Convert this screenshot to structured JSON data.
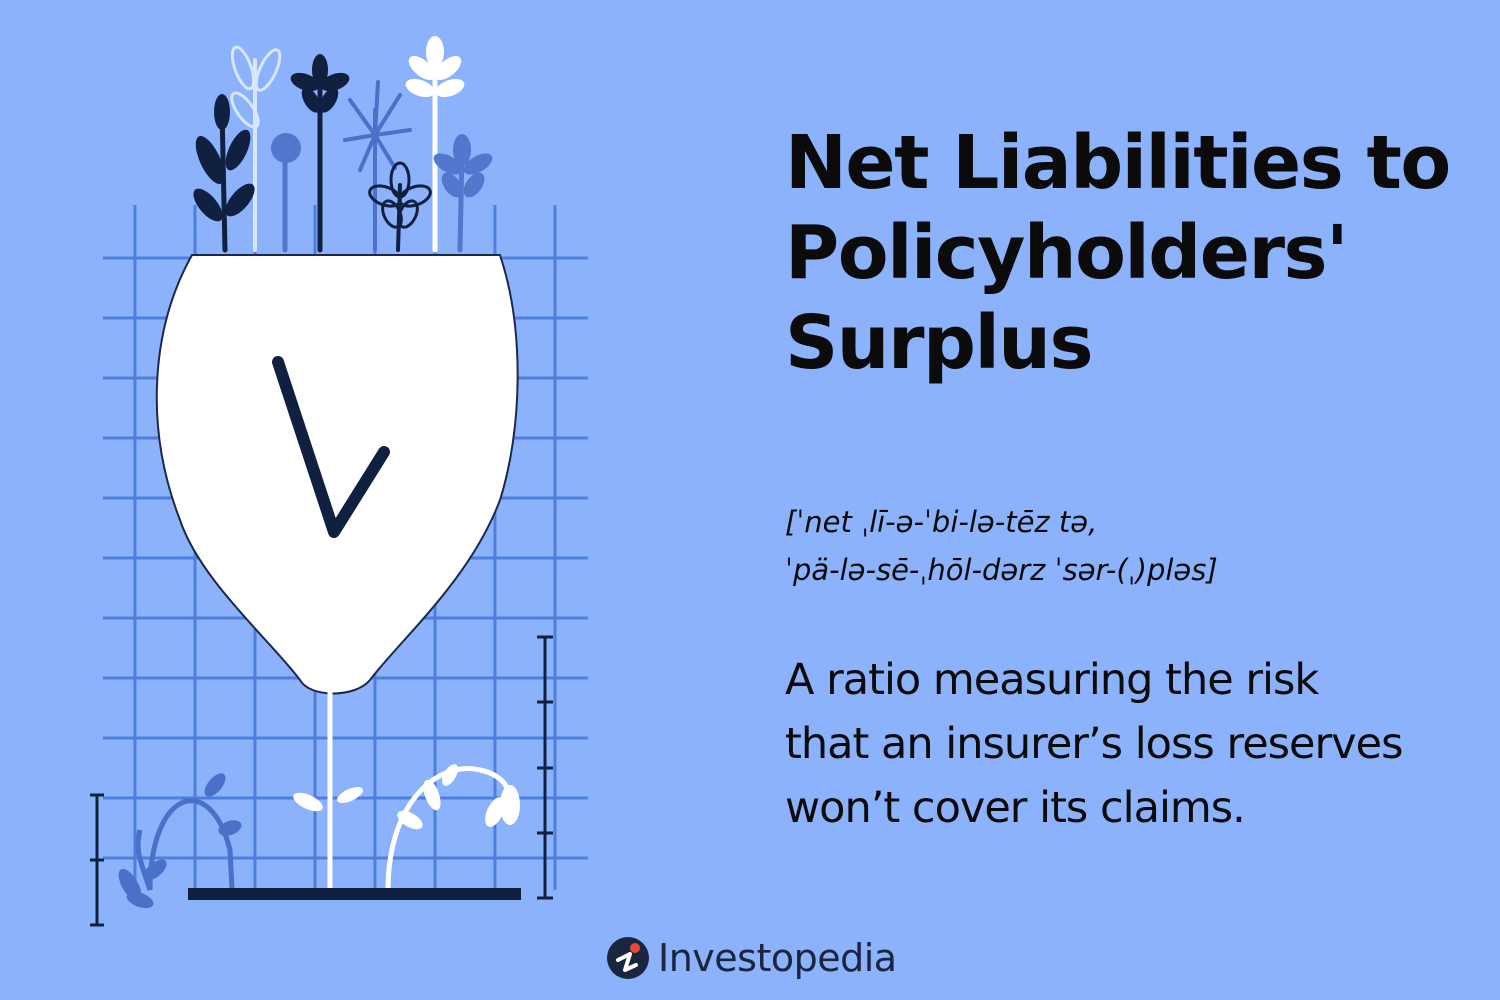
{
  "title_lines": [
    "Net Liabilities to",
    "Policyholders'",
    "Surplus"
  ],
  "pronunciation_lines": [
    "[ˈnet ˌlī-ə-ˈbi-lə-tēz tə,",
    "ˈpä-lə-sē-ˌhōl-dərz ˈsər-(ˌ)pləs]"
  ],
  "definition_lines": [
    "A ratio measuring the risk",
    "that an insurer’s loss reserves",
    "won’t cover its claims."
  ],
  "brand": {
    "name": "Investopedia",
    "icon": "investopedia-logo-icon"
  },
  "colors": {
    "background": "#8bb2fb",
    "grid": "#4f7fdc",
    "navy": "#0f2040",
    "white": "#ffffff",
    "logo_accent": "#e8463a"
  }
}
